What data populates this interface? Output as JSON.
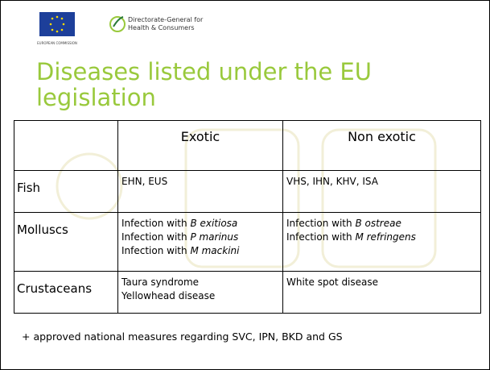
{
  "header": {
    "logo_text": "EUROPEAN COMMISSION",
    "dg_line1": "Directorate-General for",
    "dg_line2": "Health & Consumers"
  },
  "title": "Diseases listed under the EU legislation",
  "table": {
    "columns": [
      "Exotic",
      "Non exotic"
    ],
    "rows": [
      {
        "label": "Fish",
        "cells": [
          [
            {
              "text": "EHN, EUS"
            }
          ],
          [
            {
              "text": "VHS, IHN, KHV, ISA"
            }
          ]
        ]
      },
      {
        "label": "Molluscs",
        "cells": [
          [
            {
              "text": "Infection with ",
              "italic": "B exitiosa"
            },
            {
              "text": "Infection with ",
              "italic": "P marinus"
            },
            {
              "text": "Infection with ",
              "italic": "M mackini"
            }
          ],
          [
            {
              "text": "Infection with ",
              "italic": "B ostreae"
            },
            {
              "text": "Infection with ",
              "italic": "M refringens"
            }
          ]
        ]
      },
      {
        "label": "Crustaceans",
        "cells": [
          [
            {
              "text": "Taura syndrome"
            },
            {
              "text": "Yellowhead disease"
            }
          ],
          [
            {
              "text": "White spot disease"
            }
          ]
        ]
      }
    ]
  },
  "footer": "+ approved national measures regarding SVC, IPN, BKD and GS"
}
